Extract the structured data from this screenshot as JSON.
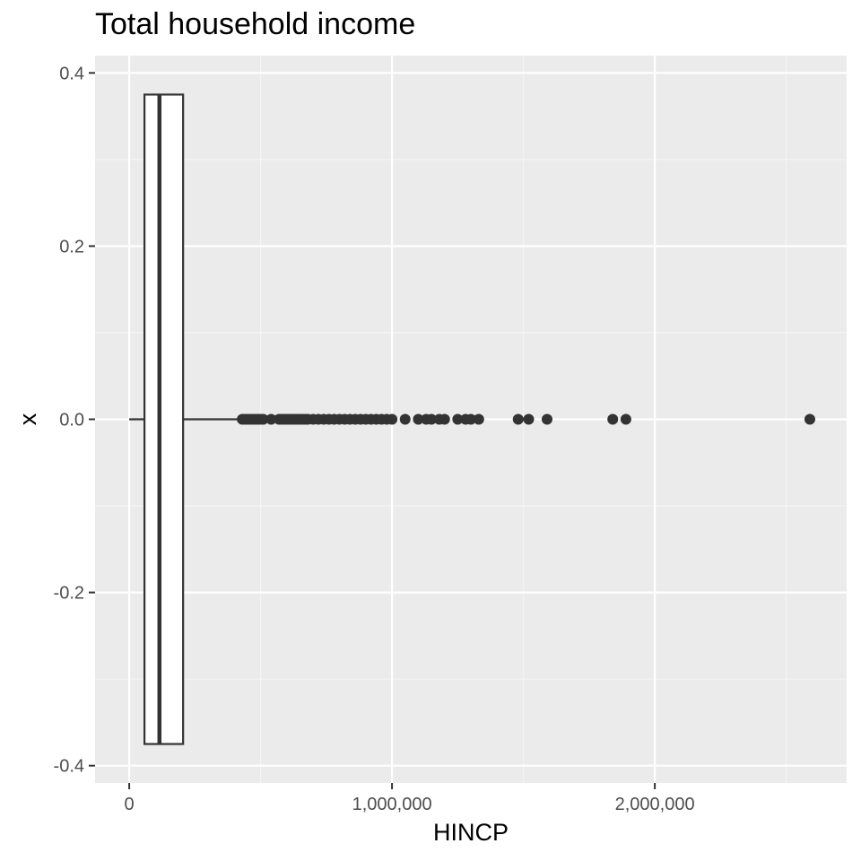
{
  "chart_data": {
    "type": "boxplot",
    "title": "Total household income",
    "xlabel": "HINCP",
    "ylabel": "x",
    "xlim": [
      -130000,
      2730000
    ],
    "ylim": [
      -0.42,
      0.42
    ],
    "grid": true,
    "x_ticks": [
      {
        "value": 0,
        "label": "0"
      },
      {
        "value": 1000000,
        "label": "1,000,000"
      },
      {
        "value": 2000000,
        "label": "2,000,000"
      }
    ],
    "x_minor_ticks": [
      500000,
      1500000,
      2500000
    ],
    "y_ticks": [
      {
        "value": 0.4,
        "label": "0.4"
      },
      {
        "value": 0.2,
        "label": "0.2"
      },
      {
        "value": 0.0,
        "label": "0.0"
      },
      {
        "value": -0.2,
        "label": "-0.2"
      },
      {
        "value": -0.4,
        "label": "-0.4"
      }
    ],
    "y_minor_ticks": [
      0.3,
      0.1,
      -0.1,
      -0.3
    ],
    "box": {
      "y_center": 0,
      "half_width": 0.375,
      "whisker_low": 0,
      "q1": 58000,
      "median": 115000,
      "q3": 205000,
      "whisker_high": 425000
    },
    "outliers": [
      430000,
      440000,
      450000,
      460000,
      470000,
      480000,
      490000,
      500000,
      510000,
      540000,
      570000,
      580000,
      590000,
      600000,
      610000,
      620000,
      630000,
      640000,
      650000,
      660000,
      670000,
      680000,
      700000,
      720000,
      740000,
      760000,
      780000,
      800000,
      820000,
      840000,
      860000,
      880000,
      900000,
      920000,
      940000,
      960000,
      980000,
      1000000,
      1050000,
      1100000,
      1130000,
      1150000,
      1180000,
      1200000,
      1250000,
      1280000,
      1300000,
      1330000,
      1480000,
      1520000,
      1590000,
      1840000,
      1890000,
      2590000
    ]
  },
  "colors": {
    "panel": "#ebebeb",
    "grid_major": "#ffffff",
    "grid_minor": "#f5f5f5",
    "ink": "#333333",
    "box_fill": "#ffffff"
  }
}
